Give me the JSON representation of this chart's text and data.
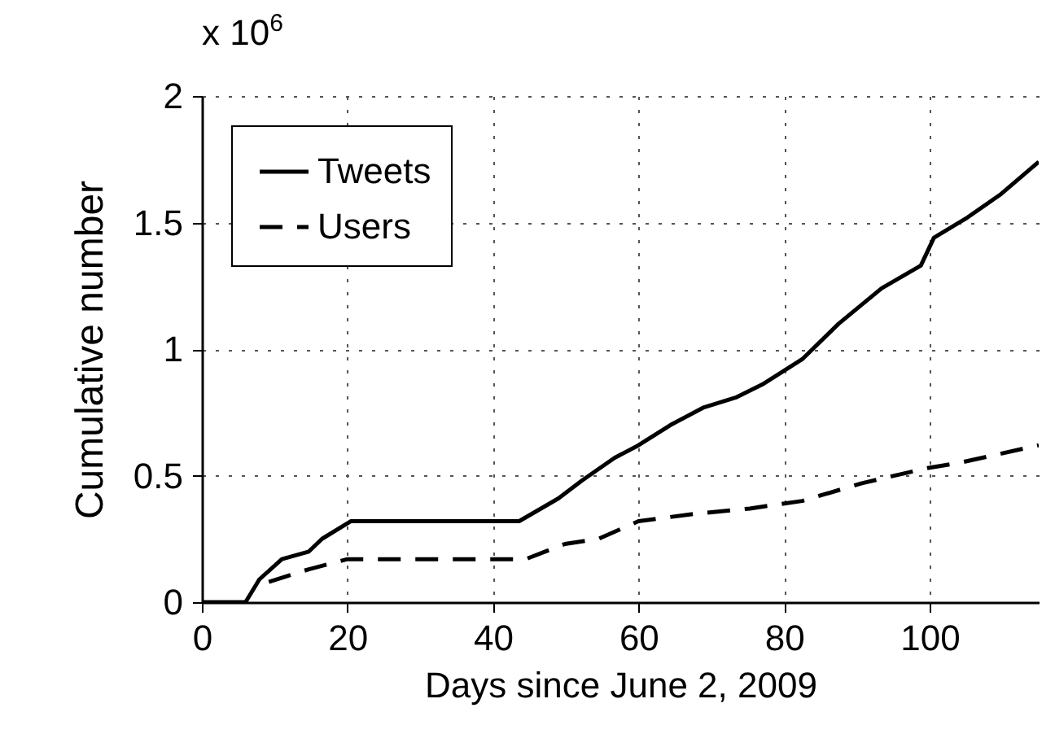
{
  "chart_data": {
    "type": "line",
    "xlabel": "Days since June 2, 2009",
    "ylabel": "Cumulative number",
    "annotations": [
      "x 10$^{6}$"
    ],
    "xlim": [
      0,
      115
    ],
    "ylim": [
      0,
      2
    ],
    "xticks": [
      0,
      20,
      40,
      60,
      80,
      100
    ],
    "yticks": [
      0,
      0.5,
      1,
      1.5,
      2
    ],
    "grid": true,
    "legend": "top left",
    "series": [
      {
        "name": "Tweets",
        "color": "#000000",
        "line_style": "solid",
        "x": [
          0,
          6,
          7.9,
          11,
          14.7,
          16.5,
          20.5,
          43.6,
          49,
          52.2,
          56.7,
          60,
          64.4,
          69,
          73.5,
          77,
          82.5,
          87.5,
          93.4,
          98.8,
          100.6,
          105.2,
          109.7,
          115
        ],
        "values": [
          0,
          0,
          0.09,
          0.17,
          0.2,
          0.25,
          0.32,
          0.32,
          0.41,
          0.48,
          0.57,
          0.62,
          0.7,
          0.77,
          0.81,
          0.86,
          0.96,
          1.1,
          1.24,
          1.33,
          1.44,
          1.52,
          1.61,
          1.74
        ]
      },
      {
        "name": "Users",
        "color": "#000000",
        "line_style": "dashed",
        "x": [
          9.2,
          14.7,
          20,
          44.5,
          49.9,
          54.5,
          60,
          68,
          75.3,
          82.5,
          90.7,
          99.7,
          104,
          115
        ],
        "values": [
          0.08,
          0.13,
          0.17,
          0.17,
          0.23,
          0.25,
          0.32,
          0.35,
          0.37,
          0.4,
          0.47,
          0.53,
          0.55,
          0.62
        ]
      }
    ]
  }
}
